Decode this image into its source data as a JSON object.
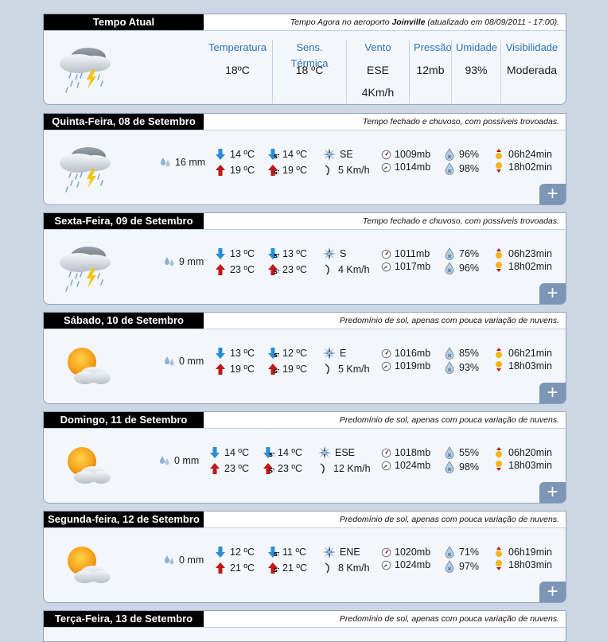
{
  "current": {
    "tab_title": "Tempo Atual",
    "desc_prefix": "Tempo Agora no aeroporto",
    "desc_city": "Joinville",
    "desc_suffix": "(atualizado em 08/09/2011 - 17:00).",
    "icon": "rain-thunder-cloud-icon",
    "columns": [
      {
        "label": "Temperatura",
        "value": "18ºC"
      },
      {
        "label": "Sens. Térmica",
        "value": "18 ºC"
      },
      {
        "label": "Vento",
        "value": "ESE 4Km/h"
      },
      {
        "label": "Pressão",
        "value": "12mb"
      },
      {
        "label": "Umidade",
        "value": "93%"
      },
      {
        "label": "Visibilidade",
        "value": "Moderada"
      }
    ]
  },
  "days": [
    {
      "title": "Quinta-Feira, 08 de Setembro",
      "desc": "Tempo fechado e chuvoso, com possíveis trovoadas.",
      "icon": "rain-thunder-cloud-icon",
      "rain": "16 mm",
      "tmin": "14 ºC",
      "tmax": "19 ºC",
      "stmin": "14 ºC",
      "stmax": "19 ºC",
      "wdir": "SE",
      "wspeed": "5 Km/h",
      "pmin": "1009mb",
      "pmax": "1014mb",
      "hmin": "96%",
      "hmax": "98%",
      "sunrise": "06h24min",
      "sunset": "18h02min",
      "plus": "+"
    },
    {
      "title": "Sexta-Feira, 09 de Setembro",
      "desc": "Tempo fechado e chuvoso, com possíveis trovoadas.",
      "icon": "rain-thunder-cloud-icon",
      "rain": "9 mm",
      "tmin": "13 ºC",
      "tmax": "23 ºC",
      "stmin": "13 ºC",
      "stmax": "23 ºC",
      "wdir": "S",
      "wspeed": "4 Km/h",
      "pmin": "1011mb",
      "pmax": "1017mb",
      "hmin": "76%",
      "hmax": "96%",
      "sunrise": "06h23min",
      "sunset": "18h02min",
      "plus": "+"
    },
    {
      "title": "Sábado, 10 de Setembro",
      "desc": "Predomínio de sol, apenas com pouca variação de nuvens.",
      "icon": "sun-cloud-icon",
      "rain": "0 mm",
      "tmin": "13 ºC",
      "tmax": "19 ºC",
      "stmin": "12 ºC",
      "stmax": "19 ºC",
      "wdir": "E",
      "wspeed": "5 Km/h",
      "pmin": "1016mb",
      "pmax": "1019mb",
      "hmin": "85%",
      "hmax": "93%",
      "sunrise": "06h21min",
      "sunset": "18h03min",
      "plus": "+"
    },
    {
      "title": "Domingo, 11 de Setembro",
      "desc": "Predomínio de sol, apenas com pouca variação de nuvens.",
      "icon": "sun-cloud-icon",
      "rain": "0 mm",
      "tmin": "14 ºC",
      "tmax": "23 ºC",
      "stmin": "14 ºC",
      "stmax": "23 ºC",
      "wdir": "ESE",
      "wspeed": "12 Km/h",
      "pmin": "1018mb",
      "pmax": "1024mb",
      "hmin": "55%",
      "hmax": "98%",
      "sunrise": "06h20min",
      "sunset": "18h03min",
      "plus": "+"
    },
    {
      "title": "Segunda-feira, 12 de Setembro",
      "desc": "Predomínio de sol, apenas com pouca variação de nuvens.",
      "icon": "sun-cloud-icon",
      "rain": "0 mm",
      "tmin": "12 ºC",
      "tmax": "21 ºC",
      "stmin": "11 ºC",
      "stmax": "21 ºC",
      "wdir": "ENE",
      "wspeed": "8 Km/h",
      "pmin": "1020mb",
      "pmax": "1024mb",
      "hmin": "71%",
      "hmax": "97%",
      "sunrise": "06h19min",
      "sunset": "18h03min",
      "plus": "+"
    },
    {
      "title": "Terça-Feira, 13 de Setembro",
      "desc": "Predomínio de sol, apenas com pouca variação de nuvens."
    }
  ],
  "colors": {
    "tab_bg": "#000000",
    "accent_blue": "#2e73b8",
    "plus_bg": "#7d95b7",
    "panel_border": "#8ea4c2"
  }
}
